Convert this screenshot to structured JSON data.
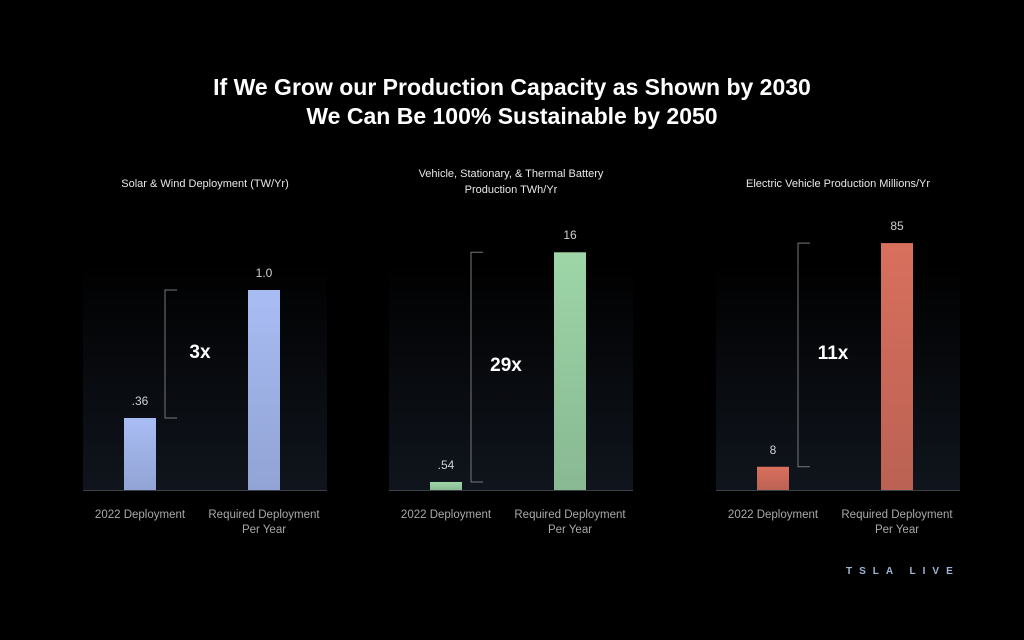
{
  "title": [
    "If We Grow our Production Capacity as Shown by 2030",
    "We Can Be 100% Sustainable by 2050"
  ],
  "logo": "TSLA LIVE",
  "chart_data": [
    {
      "type": "bar",
      "title": "Solar & Wind Deployment (TW/Yr)",
      "categories": [
        "2022 Deployment",
        "Required Deployment Per Year"
      ],
      "values": [
        0.36,
        1.0
      ],
      "value_labels": [
        ".36",
        "1.0"
      ],
      "color": "#a9bdf5",
      "annotation": "3x",
      "ylim": [
        0,
        1.3
      ]
    },
    {
      "type": "bar",
      "title": "Vehicle, Stationary, & Thermal Battery Production TWh/Yr",
      "categories": [
        "2022 Deployment",
        "Required Deployment Per Year"
      ],
      "values": [
        0.54,
        16
      ],
      "value_labels": [
        ".54",
        "16"
      ],
      "color": "#9ed6a8",
      "annotation": "29x",
      "ylim": [
        0,
        17.5
      ]
    },
    {
      "type": "bar",
      "title": "Electric Vehicle Production Millions/Yr",
      "categories": [
        "2022 Deployment",
        "Required Deployment Per Year"
      ],
      "values": [
        8,
        85
      ],
      "value_labels": [
        "8",
        "85"
      ],
      "color": "#d9705e",
      "annotation": "11x",
      "ylim": [
        0,
        89.5
      ]
    }
  ]
}
